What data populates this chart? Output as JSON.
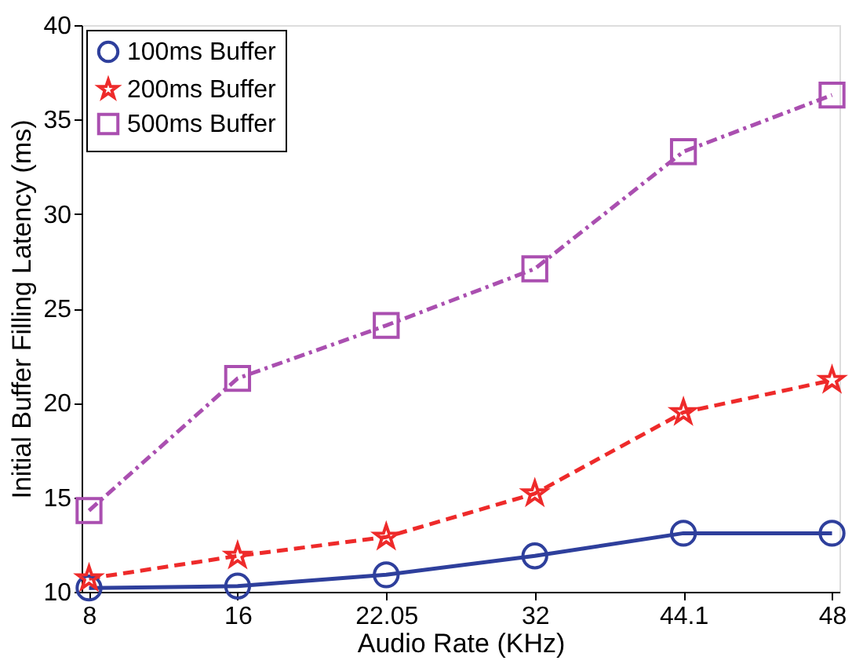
{
  "chart_data": {
    "type": "line",
    "xlabel": "Audio Rate (KHz)",
    "ylabel": "Initial Buffer Filling Latency (ms)",
    "categories": [
      "8",
      "16",
      "22.05",
      "32",
      "44.1",
      "48"
    ],
    "series": [
      {
        "name": "100ms Buffer",
        "color": "#2e3f9c",
        "marker": "circle",
        "line_style": "solid",
        "values": [
          10.2,
          10.3,
          10.9,
          11.9,
          13.1,
          13.1
        ]
      },
      {
        "name": "200ms Buffer",
        "color": "#ee2a2a",
        "marker": "star",
        "line_style": "dashed",
        "values": [
          10.7,
          11.9,
          12.9,
          15.2,
          19.5,
          21.2
        ]
      },
      {
        "name": "500ms Buffer",
        "color": "#aa4fb0",
        "marker": "square",
        "line_style": "dashdot",
        "values": [
          14.3,
          21.3,
          24.1,
          27.1,
          33.3,
          36.3
        ]
      }
    ],
    "ylim": [
      10,
      40
    ],
    "yticks": [
      10,
      15,
      20,
      25,
      30,
      35,
      40
    ],
    "grid": false,
    "legend": "top left"
  }
}
